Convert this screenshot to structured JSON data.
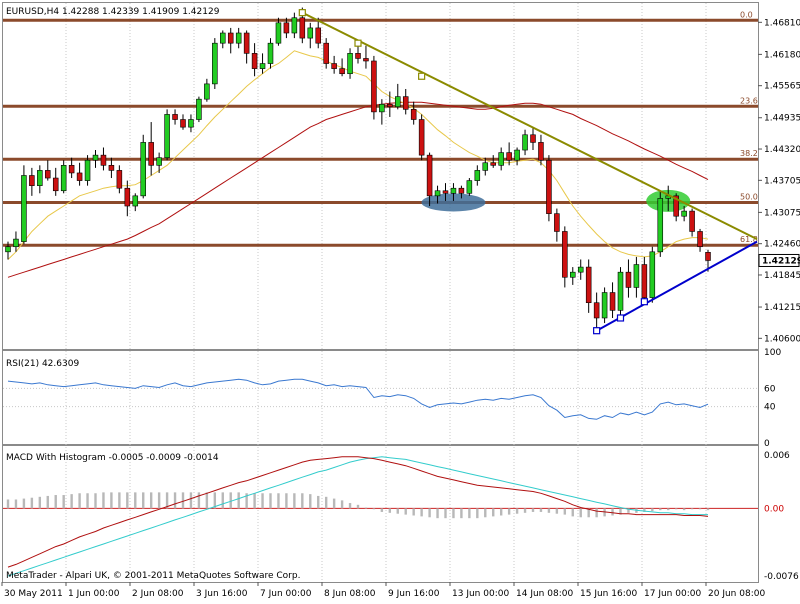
{
  "chart_data": {
    "type": "candlestick",
    "symbol_header": "EURUSD,H4  1.42288 1.42339 1.41909 1.42129",
    "copyright": "MetaTrader - Alpari UK, © 2001-2011 MetaQuotes Software Corp.",
    "current_price_label": "1.42129",
    "price_ticks": [
      "1.46810",
      "1.46180",
      "1.45565",
      "1.44935",
      "1.44320",
      "1.43705",
      "1.43075",
      "1.42460",
      "1.41845",
      "1.41215",
      "1.40600"
    ],
    "x_ticks": [
      "30 May 2011",
      "1 Jun 00:00",
      "2 Jun 08:00",
      "3 Jun 16:00",
      "7 Jun 00:00",
      "8 Jun 08:00",
      "9 Jun 16:00",
      "13 Jun 00:00",
      "14 Jun 08:00",
      "15 Jun 16:00",
      "17 Jun 00:00",
      "20 Jun 08:00"
    ],
    "fib_levels": [
      {
        "label": "0.0",
        "price": 1.4685
      },
      {
        "label": "23.6",
        "price": 1.4516
      },
      {
        "label": "38.2",
        "price": 1.4412
      },
      {
        "label": "50.0",
        "price": 1.4327
      },
      {
        "label": "61.8",
        "price": 1.4243
      }
    ],
    "ylim": [
      1.4041,
      1.4717
    ],
    "candles": [
      [
        1.423,
        1.425,
        1.4215,
        1.424
      ],
      [
        1.424,
        1.427,
        1.423,
        1.4255
      ],
      [
        1.425,
        1.44,
        1.4245,
        1.438
      ],
      [
        1.438,
        1.4395,
        1.434,
        1.436
      ],
      [
        1.436,
        1.44,
        1.4345,
        1.439
      ],
      [
        1.439,
        1.441,
        1.437,
        1.4375
      ],
      [
        1.4375,
        1.4395,
        1.434,
        1.435
      ],
      [
        1.435,
        1.441,
        1.4345,
        1.44
      ],
      [
        1.44,
        1.4415,
        1.4375,
        1.4385
      ],
      [
        1.4385,
        1.4405,
        1.436,
        1.437
      ],
      [
        1.437,
        1.442,
        1.436,
        1.441
      ],
      [
        1.441,
        1.443,
        1.4395,
        1.442
      ],
      [
        1.442,
        1.4435,
        1.439,
        1.44
      ],
      [
        1.44,
        1.4415,
        1.4375,
        1.439
      ],
      [
        1.439,
        1.44,
        1.4345,
        1.4355
      ],
      [
        1.4355,
        1.437,
        1.43,
        1.432
      ],
      [
        1.432,
        1.4345,
        1.431,
        1.434
      ],
      [
        1.434,
        1.446,
        1.4335,
        1.4445
      ],
      [
        1.4445,
        1.4485,
        1.438,
        1.44
      ],
      [
        1.44,
        1.4425,
        1.4385,
        1.4415
      ],
      [
        1.4415,
        1.451,
        1.441,
        1.45
      ],
      [
        1.45,
        1.451,
        1.448,
        1.449
      ],
      [
        1.449,
        1.45,
        1.447,
        1.4475
      ],
      [
        1.4475,
        1.45,
        1.4465,
        1.449
      ],
      [
        1.449,
        1.4535,
        1.4485,
        1.453
      ],
      [
        1.453,
        1.457,
        1.4525,
        1.456
      ],
      [
        1.456,
        1.465,
        1.455,
        1.464
      ],
      [
        1.464,
        1.4665,
        1.463,
        1.466
      ],
      [
        1.466,
        1.467,
        1.462,
        1.464
      ],
      [
        1.464,
        1.467,
        1.463,
        1.466
      ],
      [
        1.466,
        1.4665,
        1.46,
        1.462
      ],
      [
        1.462,
        1.464,
        1.4575,
        1.459
      ],
      [
        1.459,
        1.462,
        1.458,
        1.46
      ],
      [
        1.46,
        1.465,
        1.459,
        1.464
      ],
      [
        1.464,
        1.469,
        1.4635,
        1.468
      ],
      [
        1.468,
        1.469,
        1.465,
        1.466
      ],
      [
        1.466,
        1.47,
        1.465,
        1.469
      ],
      [
        1.469,
        1.471,
        1.464,
        1.465
      ],
      [
        1.465,
        1.468,
        1.463,
        1.467
      ],
      [
        1.467,
        1.469,
        1.463,
        1.464
      ],
      [
        1.464,
        1.465,
        1.459,
        1.46
      ],
      [
        1.46,
        1.4615,
        1.458,
        1.459
      ],
      [
        1.459,
        1.461,
        1.4575,
        1.458
      ],
      [
        1.458,
        1.463,
        1.457,
        1.462
      ],
      [
        1.462,
        1.464,
        1.46,
        1.461
      ],
      [
        1.461,
        1.4635,
        1.459,
        1.4605
      ],
      [
        1.4605,
        1.4615,
        1.449,
        1.4505
      ],
      [
        1.4505,
        1.453,
        1.448,
        1.452
      ],
      [
        1.452,
        1.4545,
        1.4495,
        1.4515
      ],
      [
        1.4515,
        1.456,
        1.451,
        1.4535
      ],
      [
        1.4535,
        1.455,
        1.45,
        1.451
      ],
      [
        1.451,
        1.4525,
        1.448,
        1.449
      ],
      [
        1.449,
        1.45,
        1.441,
        1.442
      ],
      [
        1.442,
        1.4425,
        1.432,
        1.434
      ],
      [
        1.434,
        1.436,
        1.4325,
        1.435
      ],
      [
        1.435,
        1.4365,
        1.433,
        1.4345
      ],
      [
        1.4345,
        1.4365,
        1.433,
        1.4355
      ],
      [
        1.4355,
        1.436,
        1.4335,
        1.4345
      ],
      [
        1.4345,
        1.4375,
        1.434,
        1.437
      ],
      [
        1.437,
        1.44,
        1.436,
        1.439
      ],
      [
        1.439,
        1.4415,
        1.438,
        1.4405
      ],
      [
        1.4405,
        1.442,
        1.4395,
        1.44
      ],
      [
        1.44,
        1.4435,
        1.439,
        1.4425
      ],
      [
        1.4425,
        1.4445,
        1.44,
        1.441
      ],
      [
        1.441,
        1.4435,
        1.44,
        1.443
      ],
      [
        1.443,
        1.447,
        1.442,
        1.446
      ],
      [
        1.446,
        1.4475,
        1.443,
        1.4445
      ],
      [
        1.4445,
        1.446,
        1.44,
        1.441
      ],
      [
        1.441,
        1.442,
        1.429,
        1.4305
      ],
      [
        1.4305,
        1.4315,
        1.425,
        1.427
      ],
      [
        1.427,
        1.428,
        1.416,
        1.418
      ],
      [
        1.418,
        1.42,
        1.4165,
        1.419
      ],
      [
        1.419,
        1.4215,
        1.4175,
        1.42
      ],
      [
        1.42,
        1.4215,
        1.411,
        1.413
      ],
      [
        1.413,
        1.415,
        1.407,
        1.41
      ],
      [
        1.41,
        1.416,
        1.409,
        1.415
      ],
      [
        1.415,
        1.417,
        1.41,
        1.4115
      ],
      [
        1.4115,
        1.42,
        1.4105,
        1.419
      ],
      [
        1.419,
        1.4215,
        1.414,
        1.416
      ],
      [
        1.416,
        1.422,
        1.414,
        1.4205
      ],
      [
        1.4205,
        1.422,
        1.413,
        1.414
      ],
      [
        1.414,
        1.424,
        1.413,
        1.423
      ],
      [
        1.423,
        1.435,
        1.422,
        1.4335
      ],
      [
        1.4335,
        1.436,
        1.431,
        1.434
      ],
      [
        1.434,
        1.4345,
        1.429,
        1.43
      ],
      [
        1.43,
        1.432,
        1.429,
        1.431
      ],
      [
        1.431,
        1.4315,
        1.426,
        1.427
      ],
      [
        1.427,
        1.4275,
        1.423,
        1.424
      ],
      [
        1.4229,
        1.4234,
        1.4191,
        1.4213
      ]
    ],
    "ma_short": [
      1.4215,
      1.423,
      1.425,
      1.427,
      1.4285,
      1.43,
      1.431,
      1.432,
      1.433,
      1.434,
      1.4345,
      1.435,
      1.4355,
      1.4358,
      1.436,
      1.436,
      1.4362,
      1.437,
      1.438,
      1.439,
      1.44,
      1.4415,
      1.443,
      1.4445,
      1.446,
      1.4478,
      1.4495,
      1.451,
      1.4525,
      1.454,
      1.4555,
      1.4568,
      1.458,
      1.4592,
      1.46,
      1.4612,
      1.4625,
      1.462,
      1.4615,
      1.4612,
      1.4605,
      1.4598,
      1.4592,
      1.4585,
      1.458,
      1.4575,
      1.456,
      1.4545,
      1.4535,
      1.4528,
      1.452,
      1.4512,
      1.45,
      1.4485,
      1.447,
      1.4458,
      1.4445,
      1.4435,
      1.4425,
      1.4418,
      1.441,
      1.4405,
      1.4405,
      1.4405,
      1.4408,
      1.441,
      1.4412,
      1.4405,
      1.439,
      1.437,
      1.4345,
      1.432,
      1.43,
      1.4282,
      1.4265,
      1.425,
      1.4238,
      1.423,
      1.4225,
      1.4222,
      1.422,
      1.4222,
      1.423,
      1.424,
      1.425,
      1.4255,
      1.4258,
      1.4258,
      1.4255
    ],
    "ma_long": [
      1.418,
      1.4185,
      1.419,
      1.4195,
      1.42,
      1.4205,
      1.421,
      1.4215,
      1.422,
      1.4225,
      1.423,
      1.4235,
      1.424,
      1.4245,
      1.425,
      1.4255,
      1.4262,
      1.427,
      1.4278,
      1.4285,
      1.4295,
      1.4305,
      1.4315,
      1.4325,
      1.4335,
      1.4345,
      1.4355,
      1.4365,
      1.4375,
      1.4385,
      1.4395,
      1.4405,
      1.4415,
      1.4425,
      1.4435,
      1.4445,
      1.4455,
      1.4465,
      1.4475,
      1.4482,
      1.449,
      1.4495,
      1.45,
      1.4505,
      1.451,
      1.4515,
      1.4518,
      1.452,
      1.4522,
      1.4523,
      1.4524,
      1.4524,
      1.4524,
      1.4522,
      1.452,
      1.4518,
      1.4516,
      1.4514,
      1.4512,
      1.451,
      1.451,
      1.4512,
      1.4515,
      1.4518,
      1.452,
      1.4522,
      1.4522,
      1.452,
      1.4515,
      1.451,
      1.4505,
      1.45,
      1.4492,
      1.4485,
      1.4478,
      1.447,
      1.4462,
      1.4455,
      1.4448,
      1.444,
      1.4432,
      1.4425,
      1.4418,
      1.441,
      1.4402,
      1.4395,
      1.4388,
      1.438,
      1.4372
    ],
    "rsi": {
      "label": "RSI(21) 42.6309",
      "levels": [
        "100",
        "60",
        "40",
        "0"
      ],
      "ylim": [
        0,
        100
      ],
      "values": [
        68,
        67,
        66,
        65,
        66,
        64,
        63,
        62,
        63,
        64,
        65,
        66,
        64,
        63,
        62,
        61,
        60,
        63,
        62,
        61,
        64,
        66,
        63,
        62,
        64,
        66,
        67,
        68,
        69,
        70,
        69,
        66,
        64,
        65,
        68,
        69,
        70,
        70,
        68,
        66,
        63,
        64,
        62,
        63,
        62,
        61,
        50,
        52,
        51,
        53,
        52,
        49,
        43,
        39,
        42,
        43,
        44,
        43,
        45,
        47,
        48,
        47,
        49,
        48,
        50,
        52,
        53,
        50,
        41,
        36,
        28,
        30,
        31,
        27,
        26,
        30,
        28,
        33,
        31,
        34,
        31,
        34,
        43,
        45,
        42,
        43,
        41,
        39,
        42.6
      ]
    },
    "macd": {
      "label": "MACD With Histogram -0.0005 -0.0009 -0.0014",
      "levels": [
        "0.006",
        "0.00",
        "-0.0076"
      ],
      "ylim": [
        -0.0076,
        0.006
      ],
      "macd": [
        -0.0066,
        -0.0063,
        -0.0059,
        -0.0055,
        -0.0051,
        -0.0047,
        -0.0043,
        -0.004,
        -0.0036,
        -0.0032,
        -0.0029,
        -0.0026,
        -0.0022,
        -0.0019,
        -0.0016,
        -0.0013,
        -0.001,
        -0.0007,
        -0.0004,
        -0.0001,
        0.0002,
        0.0005,
        0.0008,
        0.0011,
        0.0014,
        0.0017,
        0.002,
        0.0023,
        0.0026,
        0.0029,
        0.0031,
        0.0034,
        0.0037,
        0.004,
        0.0043,
        0.0046,
        0.0049,
        0.0052,
        0.0054,
        0.0055,
        0.0056,
        0.0057,
        0.0058,
        0.0058,
        0.0058,
        0.0057,
        0.0056,
        0.0054,
        0.0052,
        0.005,
        0.0048,
        0.0045,
        0.0042,
        0.0039,
        0.0036,
        0.0034,
        0.0032,
        0.003,
        0.0028,
        0.0026,
        0.0025,
        0.0024,
        0.0023,
        0.0022,
        0.0021,
        0.002,
        0.0019,
        0.0017,
        0.0014,
        0.0011,
        0.0008,
        0.0004,
        0.0001,
        -0.0001,
        -0.0003,
        -0.0004,
        -0.0005,
        -0.0006,
        -0.0006,
        -0.0007,
        -0.0007,
        -0.0007,
        -0.0007,
        -0.0007,
        -0.0007,
        -0.0008,
        -0.0008,
        -0.0008,
        -0.0009
      ],
      "signal": [
        -0.0076,
        -0.0073,
        -0.007,
        -0.0067,
        -0.0064,
        -0.0061,
        -0.0058,
        -0.0055,
        -0.0052,
        -0.0049,
        -0.0046,
        -0.0043,
        -0.004,
        -0.0037,
        -0.0034,
        -0.0031,
        -0.0028,
        -0.0025,
        -0.0022,
        -0.0019,
        -0.0016,
        -0.0013,
        -0.001,
        -0.0007,
        -0.0004,
        -0.0001,
        0.0002,
        0.0005,
        0.0008,
        0.0011,
        0.0014,
        0.0017,
        0.002,
        0.0023,
        0.0026,
        0.0029,
        0.0032,
        0.0035,
        0.0038,
        0.0041,
        0.0043,
        0.0046,
        0.0049,
        0.0052,
        0.0054,
        0.0056,
        0.0057,
        0.0058,
        0.0057,
        0.0056,
        0.0055,
        0.0053,
        0.0051,
        0.0049,
        0.0047,
        0.0045,
        0.0043,
        0.0041,
        0.0039,
        0.0037,
        0.0035,
        0.0033,
        0.0031,
        0.0029,
        0.0027,
        0.0025,
        0.0023,
        0.0021,
        0.0019,
        0.0017,
        0.0015,
        0.0013,
        0.0011,
        0.0009,
        0.0007,
        0.0005,
        0.0003,
        0.0001,
        -0.0001,
        -0.0002,
        -0.0003,
        -0.0004,
        -0.0005,
        -0.0005,
        -0.0006,
        -0.0006,
        -0.0007,
        -0.0007,
        -0.0007
      ],
      "histogram": [
        0.001,
        0.001,
        0.0011,
        0.0012,
        0.0013,
        0.0014,
        0.0015,
        0.0015,
        0.0016,
        0.0017,
        0.0017,
        0.0017,
        0.0018,
        0.0018,
        0.0018,
        0.0018,
        0.0018,
        0.0018,
        0.0018,
        0.0018,
        0.0018,
        0.0018,
        0.0018,
        0.0018,
        0.0018,
        0.0018,
        0.0018,
        0.0018,
        0.0018,
        0.0018,
        0.0017,
        0.0017,
        0.0017,
        0.0017,
        0.0017,
        0.0017,
        0.0017,
        0.0017,
        0.0016,
        0.0014,
        0.0013,
        0.0011,
        0.0009,
        0.0006,
        0.0004,
        0.0001,
        -0.0001,
        -0.0004,
        -0.0005,
        -0.0006,
        -0.0007,
        -0.0008,
        -0.0009,
        -0.001,
        -0.0011,
        -0.0011,
        -0.0011,
        -0.0011,
        -0.0011,
        -0.0011,
        -0.001,
        -0.0009,
        -0.0008,
        -0.0007,
        -0.0006,
        -0.0005,
        -0.0004,
        -0.0004,
        -0.0005,
        -0.0006,
        -0.0007,
        -0.0009,
        -0.001,
        -0.001,
        -0.001,
        -0.0009,
        -0.0008,
        -0.0007,
        -0.0005,
        -0.0005,
        -0.0004,
        -0.0003,
        -0.0002,
        -0.0002,
        -0.0001,
        -0.0002,
        -0.0001,
        -0.0001,
        -0.0002
      ]
    },
    "colors": {
      "bull": "#22cc22",
      "bear": "#cc1111",
      "fib_line": "#8b4a2b",
      "trendline_down": "#8b8b00",
      "trendline_up": "#0000cc",
      "ma_short": "#e8c84a",
      "ma_long": "#b01010",
      "rsi": "#3a78d0",
      "macd_line": "#b01010",
      "signal_line": "#33cccc",
      "histogram": "#b8b8b8",
      "highlight_blue": "#3f6f9a",
      "highlight_green": "#33cc33"
    }
  }
}
